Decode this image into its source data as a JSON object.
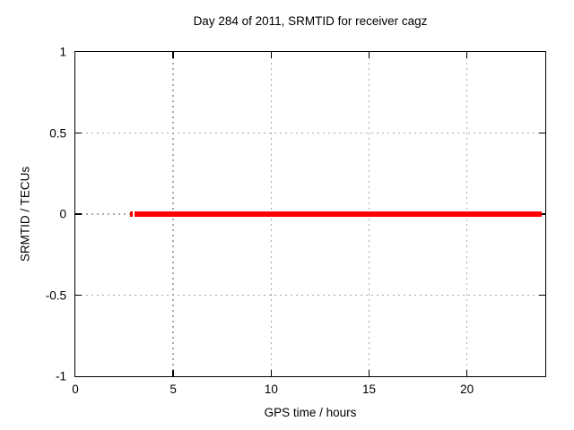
{
  "chart_data": {
    "type": "line",
    "title": "Day 284 of 2011, SRMTID for receiver cagz",
    "xlabel": "GPS time / hours",
    "ylabel": "SRMTID / TECUs",
    "xlim": [
      0,
      24
    ],
    "ylim": [
      -1,
      1
    ],
    "xticks": [
      {
        "value": 0,
        "label": "0"
      },
      {
        "value": 5,
        "label": "5"
      },
      {
        "value": 10,
        "label": "10"
      },
      {
        "value": 15,
        "label": "15"
      },
      {
        "value": 20,
        "label": "20"
      }
    ],
    "yticks": [
      {
        "value": -1,
        "label": "-1"
      },
      {
        "value": -0.5,
        "label": "-0.5"
      },
      {
        "value": 0,
        "label": "0"
      },
      {
        "value": 0.5,
        "label": "0.5"
      },
      {
        "value": 1,
        "label": "1"
      }
    ],
    "grid": true,
    "grid_style": "dotted",
    "legend": "none",
    "series": [
      {
        "name": "SRMTID",
        "color": "#ff0000",
        "linewidth": 6,
        "y": 0,
        "segments": [
          [
            2.79,
            2.92
          ],
          [
            3.02,
            23.82
          ]
        ]
      }
    ]
  },
  "colors": {
    "background": "#ffffff",
    "axis": "#000000",
    "grid": "#a8a8a8",
    "line": "#ff0000",
    "text": "#000000"
  }
}
